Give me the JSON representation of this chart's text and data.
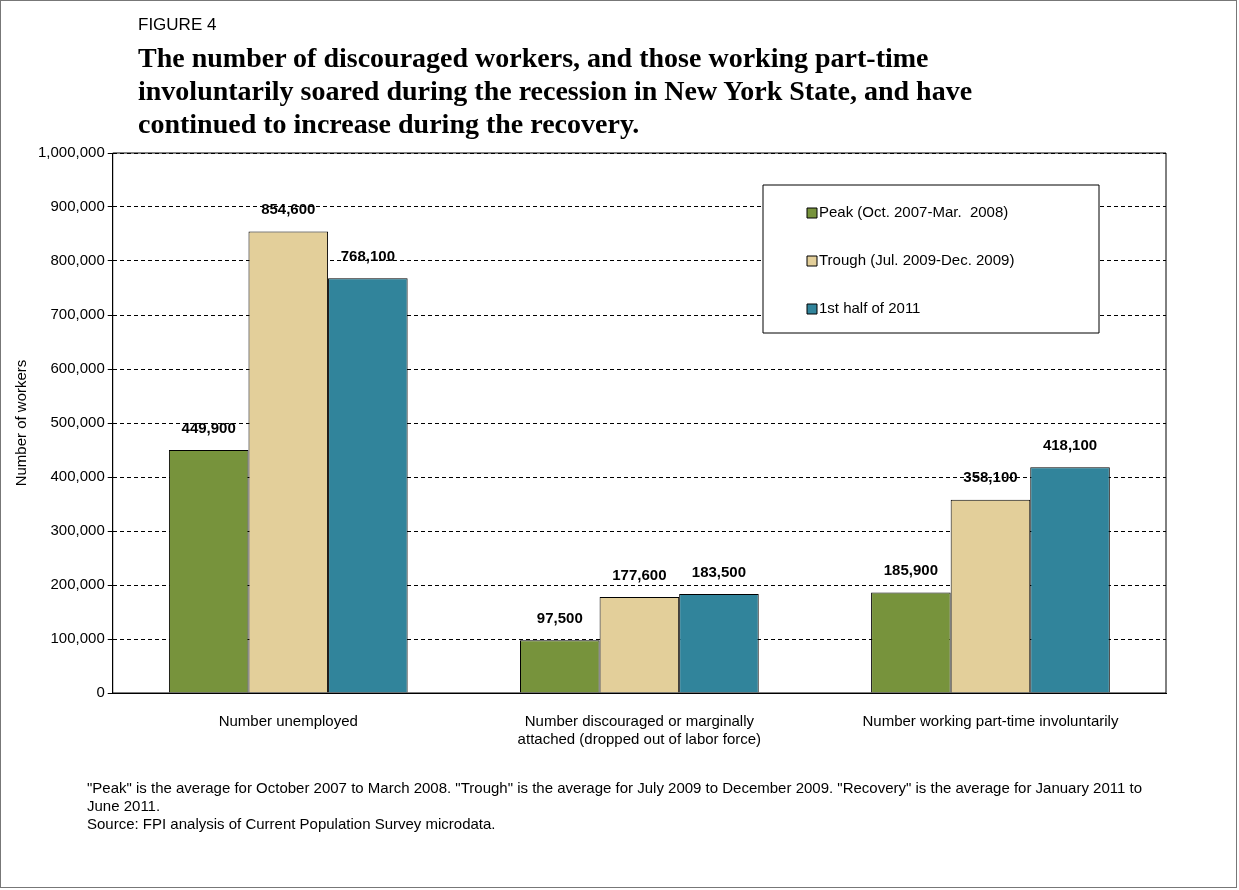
{
  "chart_data": {
    "type": "bar",
    "subtitle": "FIGURE 4",
    "title": "The number of discouraged workers, and those working part-time involuntarily soared during the recession in New York State, and have continued to increase during the recovery.",
    "ylabel": "Number of workers",
    "categories": [
      "Number unemployed",
      "Number discouraged or marginally attached (dropped out of labor force)",
      "Number working part-time involuntarily"
    ],
    "series": [
      {
        "name": "Peak (Oct. 2007-Mar.  2008)",
        "color": "#77933c",
        "values": [
          449900,
          97500,
          185900
        ],
        "value_labels": [
          "449,900",
          "97,500",
          "185,900"
        ]
      },
      {
        "name": "Trough (Jul. 2009-Dec. 2009)",
        "color": "#e3cf9a",
        "values": [
          854600,
          177600,
          358100
        ],
        "value_labels": [
          "854,600",
          "177,600",
          "358,100"
        ]
      },
      {
        "name": "1st half of 2011",
        "color": "#31849b",
        "values": [
          768100,
          183500,
          418100
        ],
        "value_labels": [
          "768,100",
          "183,500",
          "418,100"
        ]
      }
    ],
    "ylim": [
      0,
      1000000
    ],
    "yticks": [
      0,
      {
        "value": 100000,
        "label": "100,000"
      },
      {
        "value": 200000,
        "label": "200,000"
      },
      {
        "value": 300000,
        "label": "300,000"
      },
      {
        "value": 400000,
        "label": "400,000"
      },
      {
        "value": 500000,
        "label": "500,000"
      },
      {
        "value": 600000,
        "label": "600,000"
      },
      {
        "value": 700000,
        "label": "700,000"
      },
      {
        "value": 800000,
        "label": "800,000"
      },
      {
        "value": 900000,
        "label": "900,000"
      },
      {
        "value": 1000000,
        "label": "1,000,000"
      }
    ],
    "grid": "y",
    "legend": "top right",
    "annotations": [
      "\"Peak\" is the average for October 2007 to March 2008. \"Trough\" is the average for July 2009 to December 2009. \"Recovery\" is the average for January 2011 to June 2011.",
      "Source: FPI analysis of Current Population Survey microdata."
    ]
  }
}
